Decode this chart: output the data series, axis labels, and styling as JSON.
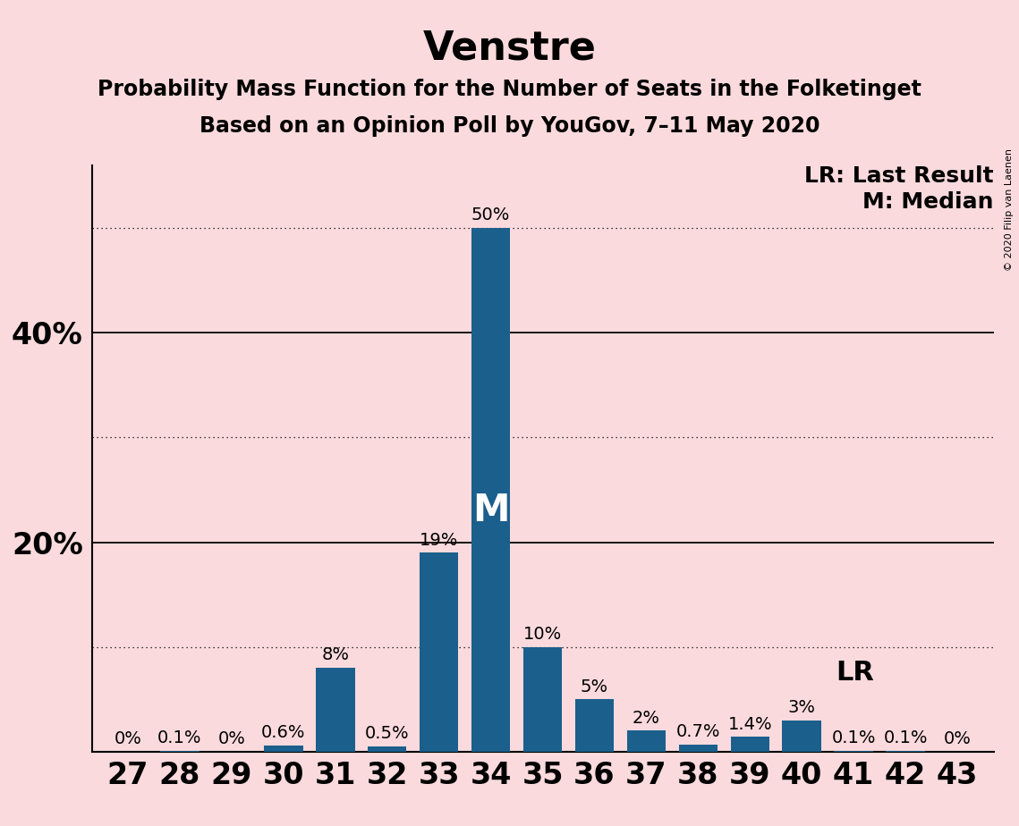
{
  "title": "Venstre",
  "subtitle1": "Probability Mass Function for the Number of Seats in the Folketinget",
  "subtitle2": "Based on an Opinion Poll by YouGov, 7–11 May 2020",
  "copyright": "© 2020 Filip van Laenen",
  "categories": [
    27,
    28,
    29,
    30,
    31,
    32,
    33,
    34,
    35,
    36,
    37,
    38,
    39,
    40,
    41,
    42,
    43
  ],
  "values": [
    0.0,
    0.1,
    0.0,
    0.6,
    8.0,
    0.5,
    19.0,
    50.0,
    10.0,
    5.0,
    2.0,
    0.7,
    1.4,
    3.0,
    0.1,
    0.1,
    0.0
  ],
  "labels": [
    "0%",
    "0.1%",
    "0%",
    "0.6%",
    "8%",
    "0.5%",
    "19%",
    "50%",
    "10%",
    "5%",
    "2%",
    "0.7%",
    "1.4%",
    "3%",
    "0.1%",
    "0.1%",
    "0%"
  ],
  "bar_color": "#1b5f8c",
  "background_color": "#fadadd",
  "median_seat": 34,
  "lr_seat": 40,
  "lr_label": "LR",
  "lr_legend": "LR: Last Result",
  "m_legend": "M: Median",
  "median_label": "M",
  "solid_yticks": [
    20,
    40
  ],
  "dotted_yticks": [
    10,
    30,
    50
  ],
  "ylim_max": 56,
  "title_fontsize": 32,
  "subtitle_fontsize": 17,
  "xtick_fontsize": 24,
  "ytick_fontsize": 24,
  "bar_label_fontsize": 14,
  "legend_fontsize": 18,
  "median_label_fontsize": 30,
  "lr_label_fontsize": 22,
  "copyright_fontsize": 8
}
